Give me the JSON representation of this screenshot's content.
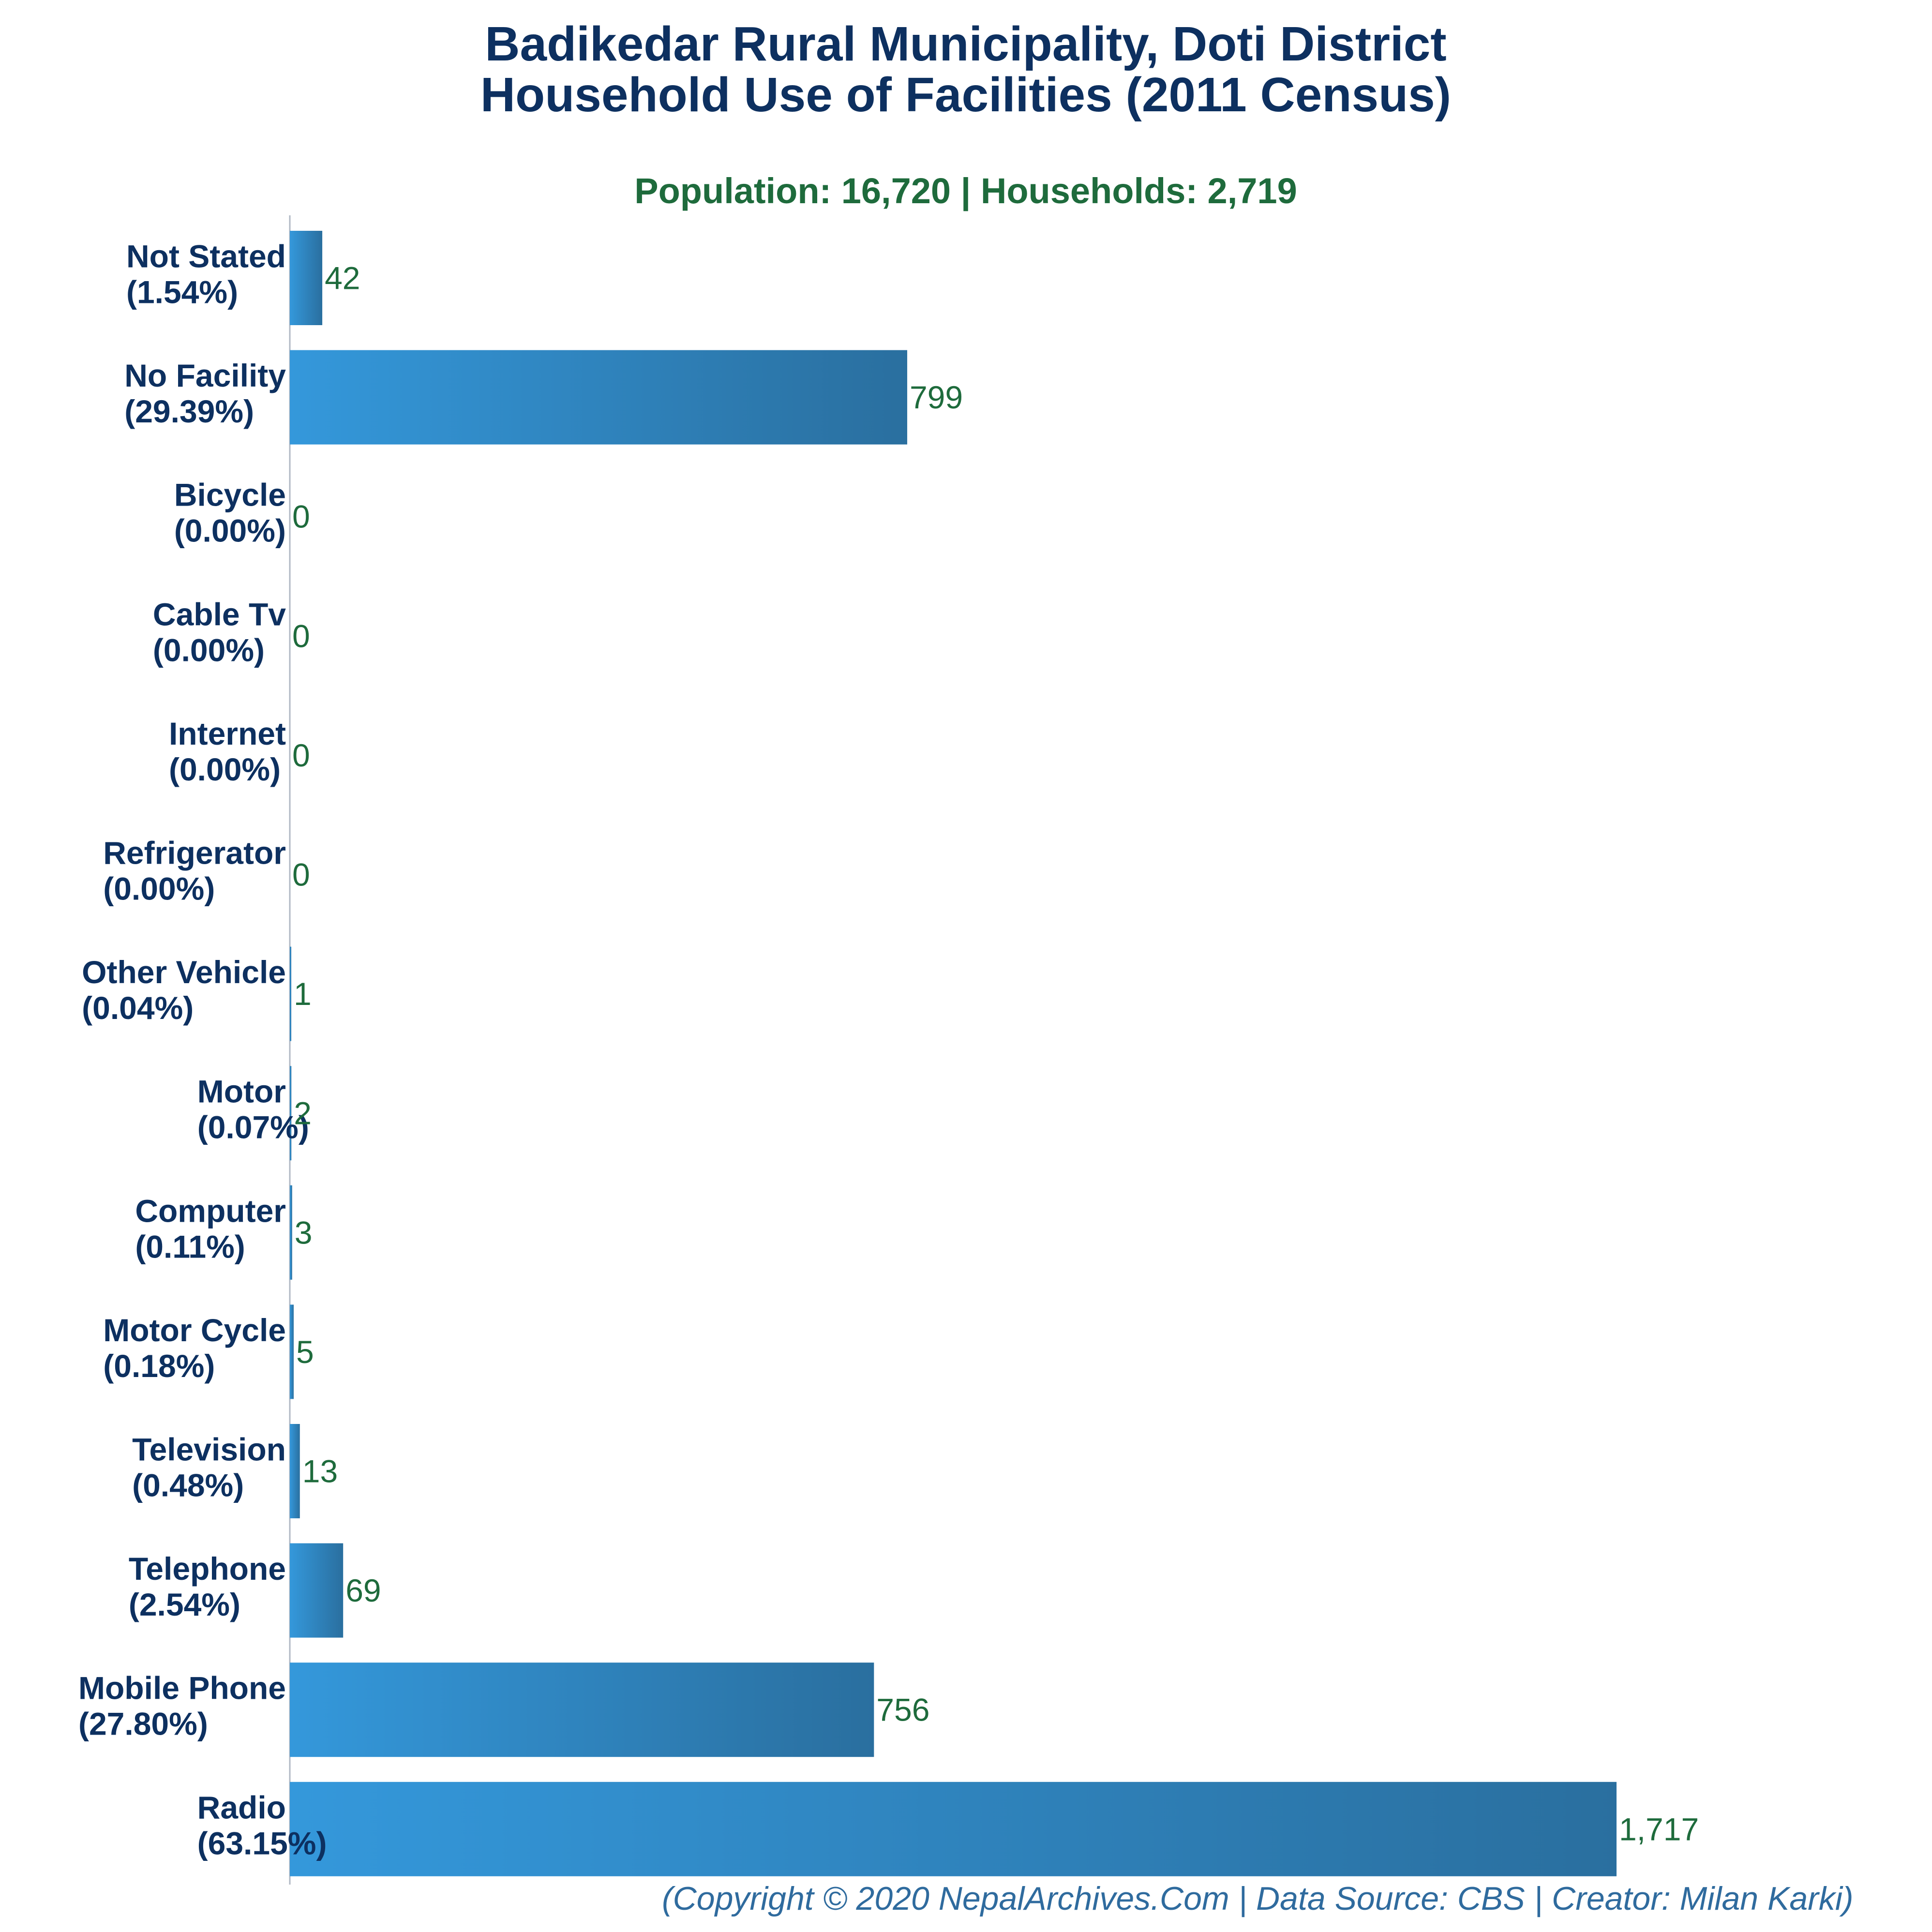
{
  "title_lines": [
    "Badikedar Rural Municipality, Doti District",
    "Household Use of Facilities (2011 Census)"
  ],
  "subtitle": "Population: 16,720 | Households: 2,719",
  "footer": "(Copyright © 2020 NepalArchives.Com | Data Source: CBS | Creator: Milan Karki)",
  "colors": {
    "title": "#0d3060",
    "subtitle": "#1e6b3c",
    "value_label": "#1e6b3c",
    "bar_light": "#3498db",
    "bar_dark": "#2a6f9f",
    "footer": "#2f6b9e"
  },
  "chart_data": {
    "type": "bar",
    "orientation": "horizontal",
    "title": "Badikedar Rural Municipality, Doti District Household Use of Facilities (2011 Census)",
    "categories": [
      "Not Stated",
      "No Facility",
      "Bicycle",
      "Cable Tv",
      "Internet",
      "Refrigerator",
      "Other Vehicle",
      "Motor",
      "Computer",
      "Motor Cycle",
      "Television",
      "Telephone",
      "Mobile Phone",
      "Radio"
    ],
    "percent_labels": [
      "(1.54%)",
      "(29.39%)",
      "(0.00%)",
      "(0.00%)",
      "(0.00%)",
      "(0.00%)",
      "(0.04%)",
      "(0.07%)",
      "(0.11%)",
      "(0.18%)",
      "(0.48%)",
      "(2.54%)",
      "(27.80%)",
      "(63.15%)"
    ],
    "values": [
      42,
      799,
      0,
      0,
      0,
      0,
      1,
      2,
      3,
      5,
      13,
      69,
      756,
      1717
    ],
    "value_labels": [
      "42",
      "799",
      "0",
      "0",
      "0",
      "0",
      "1",
      "2",
      "3",
      "5",
      "13",
      "69",
      "756",
      "1,717"
    ],
    "xlim": [
      0,
      1717
    ],
    "grid": false,
    "legend": "none"
  }
}
